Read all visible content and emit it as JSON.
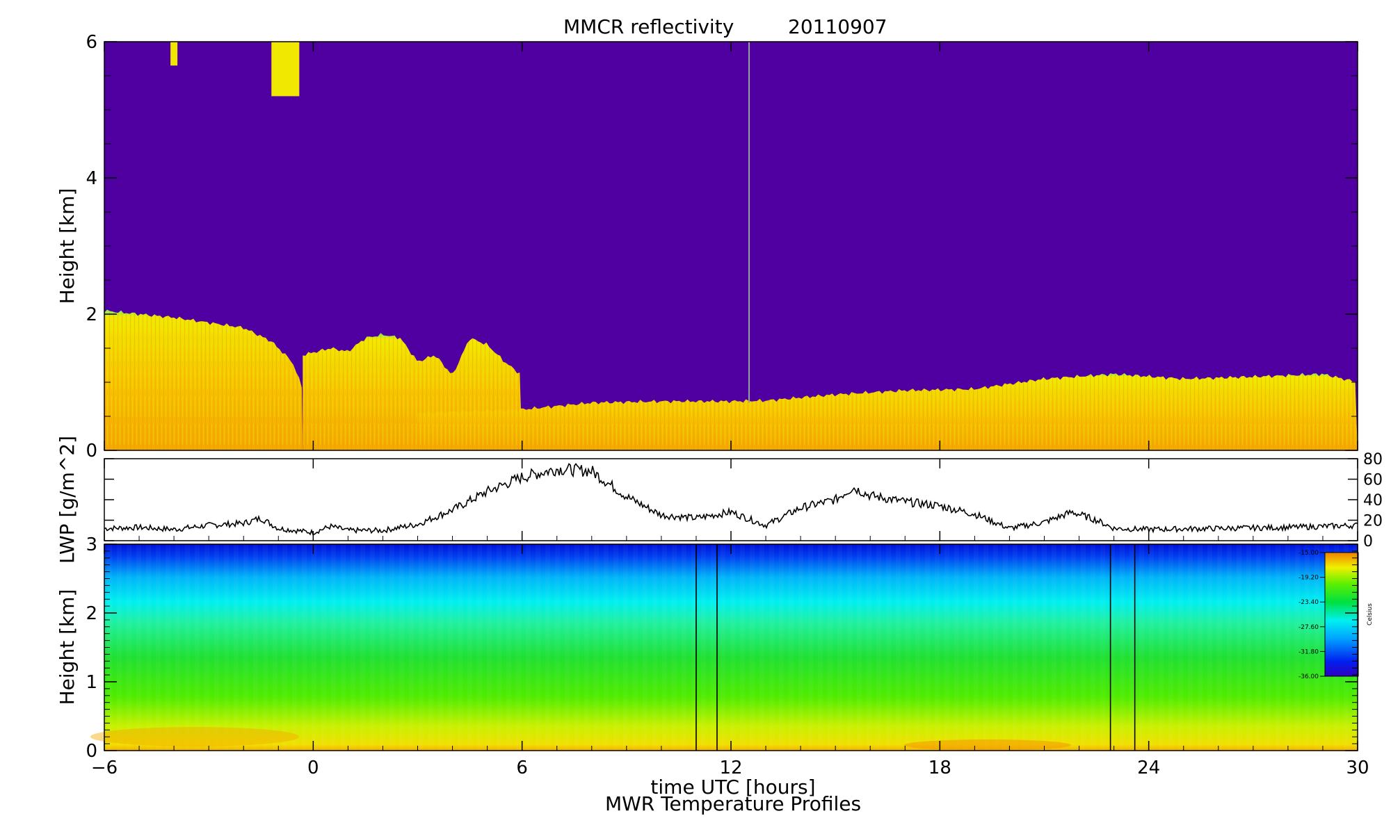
{
  "title": {
    "product": "MMCR reflectivity",
    "date": "20110907"
  },
  "xaxis": {
    "label": "time UTC [hours]",
    "range": [
      -6,
      30
    ],
    "ticks": [
      "-6",
      "0",
      "6",
      "12",
      "18",
      "24",
      "30"
    ]
  },
  "footer": "MWR Temperature Profiles",
  "colors": {
    "clear_sky": "#5000A0",
    "echo_yellow": "#F0E800",
    "echo_orange": "#F4A000",
    "echo_green": "#80F000",
    "lwp_line": "#000000",
    "frame": "#000000"
  },
  "chart_data": [
    {
      "type": "heatmap",
      "name": "reflectivity",
      "ylabel": "Height [km]",
      "xlim": [
        -6,
        30
      ],
      "ylim": [
        0,
        6
      ],
      "yticks": [
        "0",
        "2",
        "4",
        "6"
      ],
      "cloud_layers": [
        {
          "x": [
            -6,
            -4,
            -2,
            -1.2,
            -0.6,
            -0.3
          ],
          "top": [
            2.05,
            1.95,
            1.8,
            1.6,
            1.3,
            0.9
          ]
        },
        {
          "x": [
            -0.3,
            0.5,
            1,
            1.5,
            2,
            2.5,
            3,
            3.5,
            4,
            4.5,
            5,
            5.5,
            6
          ],
          "top": [
            1.4,
            1.5,
            1.45,
            1.65,
            1.7,
            1.65,
            1.3,
            1.4,
            1.1,
            1.65,
            1.55,
            1.3,
            1.1
          ]
        },
        {
          "x": [
            3,
            6,
            8,
            10,
            12,
            13,
            15,
            17,
            19,
            21,
            23,
            25,
            27,
            29,
            30
          ],
          "top": [
            0.55,
            0.6,
            0.7,
            0.72,
            0.72,
            0.73,
            0.82,
            0.88,
            0.9,
            1.05,
            1.12,
            1.05,
            1.08,
            1.12,
            1.0
          ]
        }
      ],
      "upper_echoes": [
        {
          "x": [
            -4.1,
            -3.9
          ],
          "base": 5.65,
          "top": 6.0
        },
        {
          "x": [
            -1.2,
            -0.4
          ],
          "base": 5.2,
          "top": 6.0
        }
      ],
      "artifact_x": 12.5
    },
    {
      "type": "line",
      "name": "LWP",
      "ylabel": "LWP [g/m^2]",
      "xlim": [
        -6,
        30
      ],
      "ylim": [
        0,
        80
      ],
      "yticks": [
        "0",
        "20",
        "40",
        "60",
        "80"
      ],
      "x": [
        -6,
        -5,
        -4,
        -3,
        -2,
        -1.5,
        -1,
        0,
        0.5,
        1,
        2,
        3,
        4,
        5,
        6,
        7,
        8,
        9,
        10,
        11,
        12,
        13,
        14,
        15,
        15.5,
        16,
        17,
        18,
        19,
        20,
        21,
        21.8,
        22.5,
        23,
        24,
        26,
        28,
        30
      ],
      "y": [
        12,
        13,
        11,
        15,
        17,
        22,
        12,
        8,
        14,
        10,
        10,
        16,
        30,
        48,
        62,
        70,
        68,
        43,
        25,
        22,
        28,
        15,
        32,
        40,
        52,
        44,
        38,
        34,
        26,
        12,
        18,
        28,
        20,
        12,
        11,
        12,
        13,
        15
      ]
    },
    {
      "type": "heatmap",
      "name": "temperature",
      "ylabel": "Height [km]",
      "xlim": [
        -6,
        30
      ],
      "ylim": [
        0,
        3
      ],
      "yticks": [
        "0",
        "1",
        "2",
        "3"
      ],
      "colorbar": {
        "label": "Celsius",
        "min": -36.0,
        "max": -15.0,
        "ticks": [
          "-36.00",
          "-31.80",
          "-27.60",
          "-23.40",
          "-19.20",
          "-15.00"
        ]
      },
      "missing_data_markers": [
        11.0,
        11.6,
        22.9,
        23.6
      ]
    }
  ]
}
